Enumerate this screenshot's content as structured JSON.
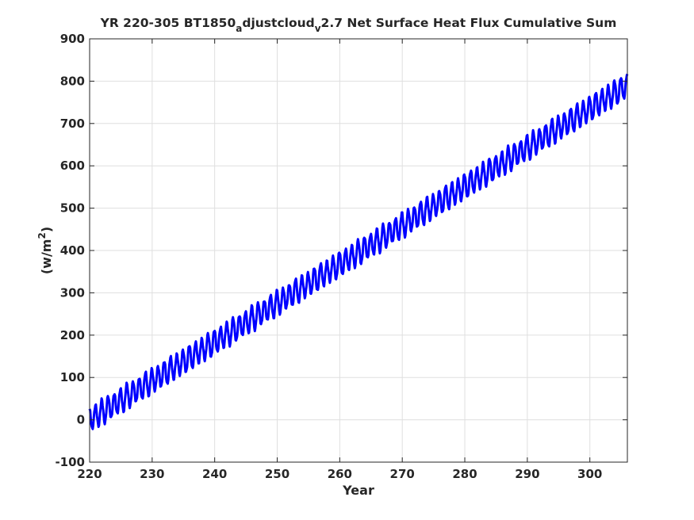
{
  "chart_data": {
    "type": "line",
    "title": {
      "lead": "YR 220-305 BT1850",
      "sub1": "a",
      "mid": "djustcloud",
      "sub2": "v",
      "tail": "2.7 Net Surface Heat Flux  Cumulative Sum"
    },
    "xlabel": "Year",
    "ylabel": {
      "base": "(w/m",
      "sup": "2",
      "close": ")"
    },
    "xlim": [
      220,
      306
    ],
    "ylim": [
      -100,
      900
    ],
    "xticks": [
      "220",
      "230",
      "240",
      "250",
      "260",
      "270",
      "280",
      "290",
      "300"
    ],
    "yticks": [
      "-100",
      "0",
      "100",
      "200",
      "300",
      "400",
      "500",
      "600",
      "700",
      "800",
      "900"
    ],
    "grid": true,
    "series": [
      {
        "color": "#0000ff",
        "sampling": "monthly",
        "trend": {
          "x": [
            220,
            306
          ],
          "y": [
            0,
            790
          ]
        },
        "seasonal_amplitude": 28
      }
    ]
  }
}
